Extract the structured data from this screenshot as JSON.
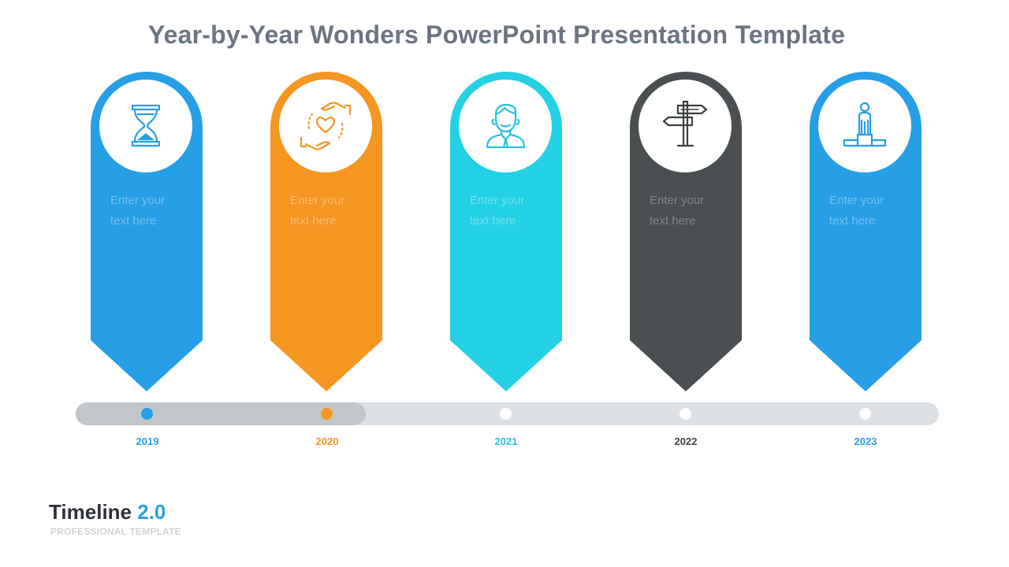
{
  "slide": {
    "title": "Year-by-Year Wonders PowerPoint Presentation Template"
  },
  "colors": {
    "blue": "#279fe6",
    "orange": "#f49620",
    "cyan": "#24d0e3",
    "dark": "#4a5052",
    "track": "#dee1e3",
    "track_progress": "#c1c6ca"
  },
  "timeline": [
    {
      "year": "2019",
      "text": "Enter your text here",
      "text_line1": "Enter your",
      "text_line2": "text here",
      "icon": "hourglass-icon",
      "color": "#279fe6",
      "year_color": "#279fe6",
      "completed": true
    },
    {
      "year": "2020",
      "text": "Enter your text here",
      "text_line1": "Enter your",
      "text_line2": "text here",
      "icon": "hands-heart-icon",
      "color": "#f49620",
      "year_color": "#f49620",
      "completed": true
    },
    {
      "year": "2021",
      "text": "Enter your text here",
      "text_line1": "Enter your",
      "text_line2": "text here",
      "icon": "businessman-icon",
      "color": "#24d0e3",
      "year_color": "#24c4e0",
      "completed": false
    },
    {
      "year": "2022",
      "text": "Enter your text here",
      "text_line1": "Enter your",
      "text_line2": "text here",
      "icon": "signpost-icon",
      "color": "#4a5052",
      "year_color": "#3b4043",
      "completed": false
    },
    {
      "year": "2023",
      "text": "Enter your text here",
      "text_line1": "Enter your",
      "text_line2": "text here",
      "icon": "podium-person-icon",
      "color": "#279fe6",
      "year_color": "#279fe6",
      "completed": false
    }
  ],
  "footer": {
    "brand_name": "Timeline",
    "brand_version": "2.0",
    "brand_subtitle": "PROFESSIONAL TEMPLATE"
  }
}
